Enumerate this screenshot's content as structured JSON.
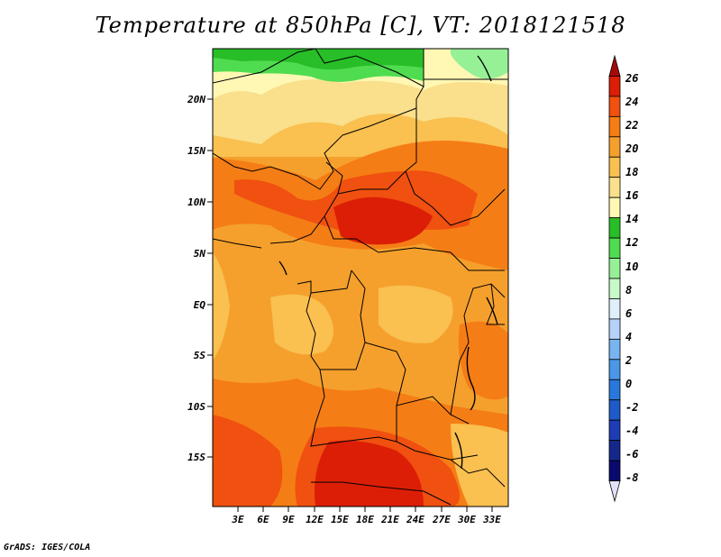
{
  "title": "Temperature at 850hPa [C], VT: 2018121518",
  "footer": "GrADS: IGES/COLA",
  "map": {
    "lat_ticks": [
      "20N",
      "15N",
      "10N",
      "5N",
      "EQ",
      "5S",
      "10S",
      "15S"
    ],
    "lon_ticks": [
      "3E",
      "6E",
      "9E",
      "12E",
      "15E",
      "18E",
      "21E",
      "24E",
      "27E",
      "30E",
      "33E"
    ]
  },
  "colorbar": {
    "labels": [
      "26",
      "24",
      "22",
      "20",
      "18",
      "16",
      "14",
      "12",
      "10",
      "8",
      "6",
      "4",
      "2",
      "0",
      "-2",
      "-4",
      "-6",
      "-8"
    ],
    "colors": [
      "#a50a0a",
      "#dc1e06",
      "#f05010",
      "#f57d15",
      "#f5a02d",
      "#fac050",
      "#fae08c",
      "#fff8b4",
      "#28be28",
      "#50dc50",
      "#96f096",
      "#c8fac8",
      "#e0f0fa",
      "#b4d2fa",
      "#78b4f0",
      "#4b96e6",
      "#2878dc",
      "#1e5ac8",
      "#1e3cb4",
      "#14288c",
      "#0a0a6e",
      "#e1e1fa"
    ]
  }
}
